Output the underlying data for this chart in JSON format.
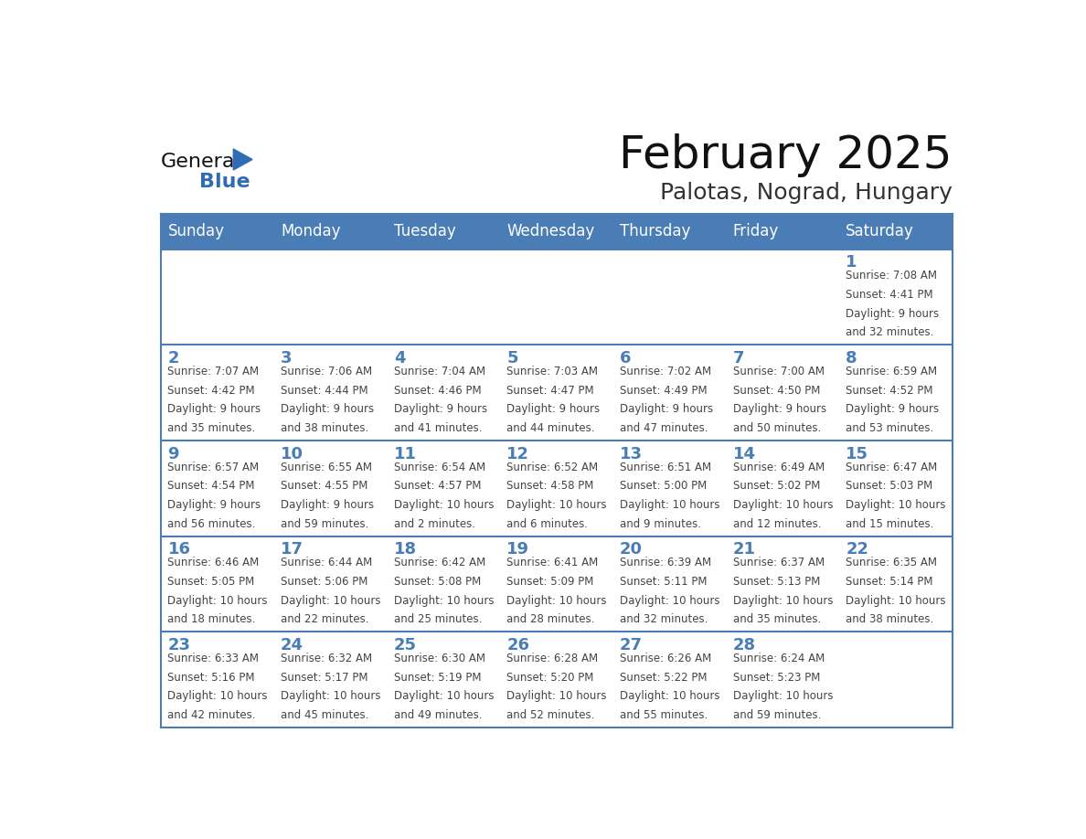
{
  "title": "February 2025",
  "subtitle": "Palotas, Nograd, Hungary",
  "days_of_week": [
    "Sunday",
    "Monday",
    "Tuesday",
    "Wednesday",
    "Thursday",
    "Friday",
    "Saturday"
  ],
  "header_bg": "#4a7db5",
  "header_text": "#ffffff",
  "cell_bg": "#ffffff",
  "cell_border": "#4a7db5",
  "day_num_color": "#4a7db5",
  "info_color": "#444444",
  "title_color": "#111111",
  "subtitle_color": "#333333",
  "logo_general_color": "#111111",
  "logo_blue_color": "#2e6db4",
  "weeks": [
    [
      {
        "day": null,
        "info": ""
      },
      {
        "day": null,
        "info": ""
      },
      {
        "day": null,
        "info": ""
      },
      {
        "day": null,
        "info": ""
      },
      {
        "day": null,
        "info": ""
      },
      {
        "day": null,
        "info": ""
      },
      {
        "day": 1,
        "info": "Sunrise: 7:08 AM\nSunset: 4:41 PM\nDaylight: 9 hours\nand 32 minutes."
      }
    ],
    [
      {
        "day": 2,
        "info": "Sunrise: 7:07 AM\nSunset: 4:42 PM\nDaylight: 9 hours\nand 35 minutes."
      },
      {
        "day": 3,
        "info": "Sunrise: 7:06 AM\nSunset: 4:44 PM\nDaylight: 9 hours\nand 38 minutes."
      },
      {
        "day": 4,
        "info": "Sunrise: 7:04 AM\nSunset: 4:46 PM\nDaylight: 9 hours\nand 41 minutes."
      },
      {
        "day": 5,
        "info": "Sunrise: 7:03 AM\nSunset: 4:47 PM\nDaylight: 9 hours\nand 44 minutes."
      },
      {
        "day": 6,
        "info": "Sunrise: 7:02 AM\nSunset: 4:49 PM\nDaylight: 9 hours\nand 47 minutes."
      },
      {
        "day": 7,
        "info": "Sunrise: 7:00 AM\nSunset: 4:50 PM\nDaylight: 9 hours\nand 50 minutes."
      },
      {
        "day": 8,
        "info": "Sunrise: 6:59 AM\nSunset: 4:52 PM\nDaylight: 9 hours\nand 53 minutes."
      }
    ],
    [
      {
        "day": 9,
        "info": "Sunrise: 6:57 AM\nSunset: 4:54 PM\nDaylight: 9 hours\nand 56 minutes."
      },
      {
        "day": 10,
        "info": "Sunrise: 6:55 AM\nSunset: 4:55 PM\nDaylight: 9 hours\nand 59 minutes."
      },
      {
        "day": 11,
        "info": "Sunrise: 6:54 AM\nSunset: 4:57 PM\nDaylight: 10 hours\nand 2 minutes."
      },
      {
        "day": 12,
        "info": "Sunrise: 6:52 AM\nSunset: 4:58 PM\nDaylight: 10 hours\nand 6 minutes."
      },
      {
        "day": 13,
        "info": "Sunrise: 6:51 AM\nSunset: 5:00 PM\nDaylight: 10 hours\nand 9 minutes."
      },
      {
        "day": 14,
        "info": "Sunrise: 6:49 AM\nSunset: 5:02 PM\nDaylight: 10 hours\nand 12 minutes."
      },
      {
        "day": 15,
        "info": "Sunrise: 6:47 AM\nSunset: 5:03 PM\nDaylight: 10 hours\nand 15 minutes."
      }
    ],
    [
      {
        "day": 16,
        "info": "Sunrise: 6:46 AM\nSunset: 5:05 PM\nDaylight: 10 hours\nand 18 minutes."
      },
      {
        "day": 17,
        "info": "Sunrise: 6:44 AM\nSunset: 5:06 PM\nDaylight: 10 hours\nand 22 minutes."
      },
      {
        "day": 18,
        "info": "Sunrise: 6:42 AM\nSunset: 5:08 PM\nDaylight: 10 hours\nand 25 minutes."
      },
      {
        "day": 19,
        "info": "Sunrise: 6:41 AM\nSunset: 5:09 PM\nDaylight: 10 hours\nand 28 minutes."
      },
      {
        "day": 20,
        "info": "Sunrise: 6:39 AM\nSunset: 5:11 PM\nDaylight: 10 hours\nand 32 minutes."
      },
      {
        "day": 21,
        "info": "Sunrise: 6:37 AM\nSunset: 5:13 PM\nDaylight: 10 hours\nand 35 minutes."
      },
      {
        "day": 22,
        "info": "Sunrise: 6:35 AM\nSunset: 5:14 PM\nDaylight: 10 hours\nand 38 minutes."
      }
    ],
    [
      {
        "day": 23,
        "info": "Sunrise: 6:33 AM\nSunset: 5:16 PM\nDaylight: 10 hours\nand 42 minutes."
      },
      {
        "day": 24,
        "info": "Sunrise: 6:32 AM\nSunset: 5:17 PM\nDaylight: 10 hours\nand 45 minutes."
      },
      {
        "day": 25,
        "info": "Sunrise: 6:30 AM\nSunset: 5:19 PM\nDaylight: 10 hours\nand 49 minutes."
      },
      {
        "day": 26,
        "info": "Sunrise: 6:28 AM\nSunset: 5:20 PM\nDaylight: 10 hours\nand 52 minutes."
      },
      {
        "day": 27,
        "info": "Sunrise: 6:26 AM\nSunset: 5:22 PM\nDaylight: 10 hours\nand 55 minutes."
      },
      {
        "day": 28,
        "info": "Sunrise: 6:24 AM\nSunset: 5:23 PM\nDaylight: 10 hours\nand 59 minutes."
      },
      {
        "day": null,
        "info": ""
      }
    ]
  ]
}
